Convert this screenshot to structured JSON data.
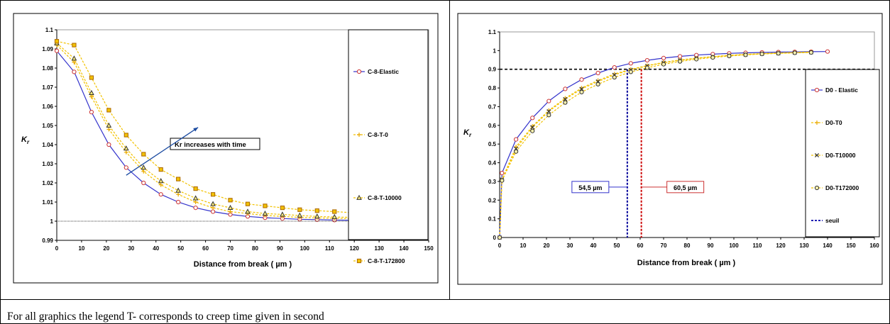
{
  "chart_data": [
    {
      "type": "line",
      "xlabel": "Distance from break ( µm )",
      "ylabel": "K",
      "ylabel_sub": "r",
      "xlim": [
        0,
        150
      ],
      "ylim": [
        0.99,
        1.1
      ],
      "xticks": [
        0,
        10,
        20,
        30,
        40,
        50,
        60,
        70,
        80,
        90,
        100,
        110,
        120,
        130,
        140,
        150
      ],
      "yticks": [
        0.99,
        1,
        1.01,
        1.02,
        1.03,
        1.04,
        1.05,
        1.06,
        1.07,
        1.08,
        1.09,
        1.1
      ],
      "ytick_labels": [
        "0.99",
        "1",
        "1.01",
        "1.02",
        "1.03",
        "1.04",
        "1.05",
        "1.06",
        "1.07",
        "1.08",
        "1.09",
        "1.1"
      ],
      "grid": false,
      "legend_position": "right",
      "annotation": {
        "text": "Kr increases with time",
        "arrow_from": [
          28,
          1.024
        ],
        "arrow_to": [
          57,
          1.049
        ]
      },
      "series": [
        {
          "name": "C-8-Elastic",
          "color": "#3333cc",
          "marker_color": "#cc3333",
          "marker": "circle",
          "dashed": false,
          "x": [
            0,
            7,
            14,
            21,
            28,
            35,
            42,
            49,
            56,
            63,
            70,
            77,
            84,
            91,
            98,
            105,
            112,
            119,
            126,
            133,
            140
          ],
          "y": [
            1.089,
            1.078,
            1.057,
            1.04,
            1.028,
            1.02,
            1.014,
            1.01,
            1.007,
            1.005,
            1.0035,
            1.0025,
            1.0018,
            1.0014,
            1.001,
            1.0008,
            1.0006,
            1.0005,
            1.0004,
            1.0003,
            1.0002
          ]
        },
        {
          "name": "C-8-T-0",
          "color": "#f2c200",
          "marker_color": "#e8a800",
          "marker": "plus",
          "dashed": true,
          "x": [
            0,
            7,
            14,
            21,
            28,
            35,
            42,
            49,
            56,
            63,
            70,
            77,
            84,
            91,
            98,
            105,
            112,
            119,
            126,
            133
          ],
          "y": [
            1.092,
            1.083,
            1.065,
            1.048,
            1.036,
            1.026,
            1.019,
            1.014,
            1.01,
            1.007,
            1.005,
            1.004,
            1.003,
            1.0025,
            1.002,
            1.0017,
            1.0015,
            1.0013,
            1.0012,
            1.001
          ]
        },
        {
          "name": "C-8-T-10000",
          "color": "#f2c200",
          "marker_color": "#333333",
          "marker": "triangle",
          "dashed": true,
          "x": [
            0,
            7,
            14,
            21,
            28,
            35,
            42,
            49,
            56,
            63,
            70,
            77,
            84,
            91,
            98,
            105,
            112,
            119,
            126,
            133
          ],
          "y": [
            1.093,
            1.085,
            1.067,
            1.05,
            1.038,
            1.028,
            1.021,
            1.016,
            1.012,
            1.009,
            1.007,
            1.005,
            1.004,
            1.0035,
            1.003,
            1.0025,
            1.0022,
            1.002,
            1.0018,
            1.0016
          ]
        },
        {
          "name": "C-8-T-172800",
          "color": "#f2c200",
          "marker_color": "#aa6600",
          "marker": "square",
          "dashed": true,
          "x": [
            0,
            7,
            14,
            21,
            28,
            35,
            42,
            49,
            56,
            63,
            70,
            77,
            84,
            91,
            98,
            105,
            112,
            119,
            126,
            133
          ],
          "y": [
            1.094,
            1.092,
            1.075,
            1.058,
            1.045,
            1.035,
            1.027,
            1.022,
            1.017,
            1.014,
            1.011,
            1.009,
            1.008,
            1.007,
            1.006,
            1.0055,
            1.005,
            1.0045,
            1.0042,
            1.004
          ]
        }
      ]
    },
    {
      "type": "line",
      "xlabel": "Distance from break ( µm )",
      "ylabel": "K",
      "ylabel_sub": "r",
      "xlim": [
        0,
        160
      ],
      "ylim": [
        0,
        1.1
      ],
      "xticks": [
        0,
        10,
        20,
        30,
        40,
        50,
        60,
        70,
        80,
        90,
        100,
        110,
        120,
        130,
        140,
        150,
        160
      ],
      "yticks": [
        0,
        0.1,
        0.2,
        0.3,
        0.4,
        0.5,
        0.6,
        0.7,
        0.8,
        0.9,
        1,
        1.1
      ],
      "ytick_labels": [
        "0",
        "0.1",
        "0.2",
        "0.3",
        "0.4",
        "0.5",
        "0.6",
        "0.7",
        "0.8",
        "0.9",
        "1",
        "1.1"
      ],
      "grid": false,
      "legend_position": "right",
      "threshold": {
        "name": "seuil",
        "y": 0.9,
        "color": "#000000"
      },
      "annotations": [
        {
          "text": "54,5 µm",
          "x": 54.5,
          "box_color": "#3333cc",
          "line_color": "#000099"
        },
        {
          "text": "60,5 µm",
          "x": 60.5,
          "box_color": "#cc3333",
          "line_color": "#cc0000"
        }
      ],
      "series": [
        {
          "name": "D0 - Elastic",
          "color": "#3333cc",
          "marker_color": "#cc3333",
          "marker": "circle",
          "dashed": false,
          "x": [
            0,
            1,
            7,
            14,
            21,
            28,
            35,
            42,
            49,
            56,
            63,
            70,
            77,
            84,
            91,
            98,
            105,
            112,
            119,
            126,
            133,
            140
          ],
          "y": [
            0,
            0.345,
            0.525,
            0.64,
            0.73,
            0.795,
            0.845,
            0.88,
            0.91,
            0.932,
            0.948,
            0.96,
            0.969,
            0.976,
            0.981,
            0.985,
            0.988,
            0.99,
            0.992,
            0.993,
            0.994,
            0.995
          ]
        },
        {
          "name": "D0-T0",
          "color": "#f2c200",
          "marker_color": "#e8a800",
          "marker": "plus",
          "dashed": true,
          "x": [
            0,
            1,
            7,
            14,
            21,
            28,
            35,
            42,
            49,
            56,
            63,
            70,
            77,
            84,
            91,
            98,
            105,
            112,
            119,
            126,
            133
          ],
          "y": [
            0,
            0.31,
            0.485,
            0.595,
            0.68,
            0.745,
            0.8,
            0.84,
            0.875,
            0.9,
            0.92,
            0.937,
            0.95,
            0.96,
            0.968,
            0.975,
            0.98,
            0.984,
            0.987,
            0.99,
            0.992
          ]
        },
        {
          "name": "D0-T10000",
          "color": "#f2c200",
          "marker_color": "#333333",
          "marker": "cross",
          "dashed": true,
          "x": [
            0,
            1,
            7,
            14,
            21,
            28,
            35,
            42,
            49,
            56,
            63,
            70,
            77,
            84,
            91,
            98,
            105,
            112,
            119,
            126,
            133
          ],
          "y": [
            0,
            0.31,
            0.475,
            0.59,
            0.675,
            0.74,
            0.795,
            0.835,
            0.87,
            0.897,
            0.918,
            0.935,
            0.948,
            0.959,
            0.967,
            0.974,
            0.979,
            0.983,
            0.986,
            0.989,
            0.991
          ]
        },
        {
          "name": "D0-T172000",
          "color": "#f2c200",
          "marker_color": "#333333",
          "marker": "ring",
          "dashed": true,
          "x": [
            0,
            1,
            7,
            14,
            21,
            28,
            35,
            42,
            49,
            56,
            63,
            70,
            77,
            84,
            91,
            98,
            105,
            112,
            119,
            126,
            133
          ],
          "y": [
            0,
            0.305,
            0.46,
            0.57,
            0.655,
            0.722,
            0.778,
            0.82,
            0.857,
            0.886,
            0.908,
            0.927,
            0.942,
            0.954,
            0.963,
            0.971,
            0.977,
            0.982,
            0.985,
            0.988,
            0.99
          ]
        }
      ]
    }
  ],
  "footnote": "For all graphics the legend T- corresponds to creep time given in second"
}
